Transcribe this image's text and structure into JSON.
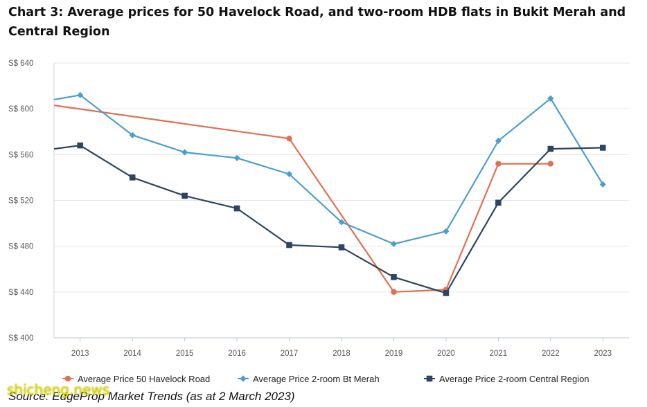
{
  "title": "Chart 3: Average prices for 50 Havelock Road, and two-room HDB flats in Bukit Merah and Central Region",
  "source": "Source: EdgeProp Market Trends (as at 2 March 2023)",
  "watermark": "shicheng.news",
  "chart_data": {
    "type": "line",
    "categories": [
      "2013",
      "2014",
      "2015",
      "2016",
      "2017",
      "2018",
      "2019",
      "2020",
      "2021",
      "2022",
      "2023"
    ],
    "y_tick_labels": [
      "S$ 400",
      "S$ 440",
      "S$ 480",
      "S$ 520",
      "S$ 560",
      "S$ 600",
      "S$ 640"
    ],
    "ylim": [
      400,
      640
    ],
    "grid": true,
    "legend_position": "bottom",
    "series": [
      {
        "name": "Average Price 50 Havelock Road",
        "color": "#e07050",
        "marker": "circle",
        "points": [
          [
            2012.5,
            603
          ],
          [
            2017,
            574
          ],
          [
            2019,
            440
          ],
          [
            2020,
            442
          ],
          [
            2021,
            552
          ],
          [
            2022,
            552
          ]
        ]
      },
      {
        "name": "Average Price 2-room Bt Merah",
        "color": "#4a9fcf",
        "marker": "diamond",
        "points": [
          [
            2012.5,
            608
          ],
          [
            2013,
            612
          ],
          [
            2014,
            577
          ],
          [
            2015,
            562
          ],
          [
            2016,
            557
          ],
          [
            2017,
            543
          ],
          [
            2018,
            501
          ],
          [
            2019,
            482
          ],
          [
            2020,
            493
          ],
          [
            2021,
            572
          ],
          [
            2022,
            609
          ],
          [
            2023,
            534
          ]
        ]
      },
      {
        "name": "Average Price 2-room Central Region",
        "color": "#2e4460",
        "marker": "square",
        "points": [
          [
            2012.5,
            565
          ],
          [
            2013,
            568
          ],
          [
            2014,
            540
          ],
          [
            2015,
            524
          ],
          [
            2016,
            513
          ],
          [
            2017,
            481
          ],
          [
            2018,
            479
          ],
          [
            2019,
            453
          ],
          [
            2020,
            439
          ],
          [
            2021,
            518
          ],
          [
            2022,
            565
          ],
          [
            2023,
            566
          ]
        ]
      }
    ]
  }
}
